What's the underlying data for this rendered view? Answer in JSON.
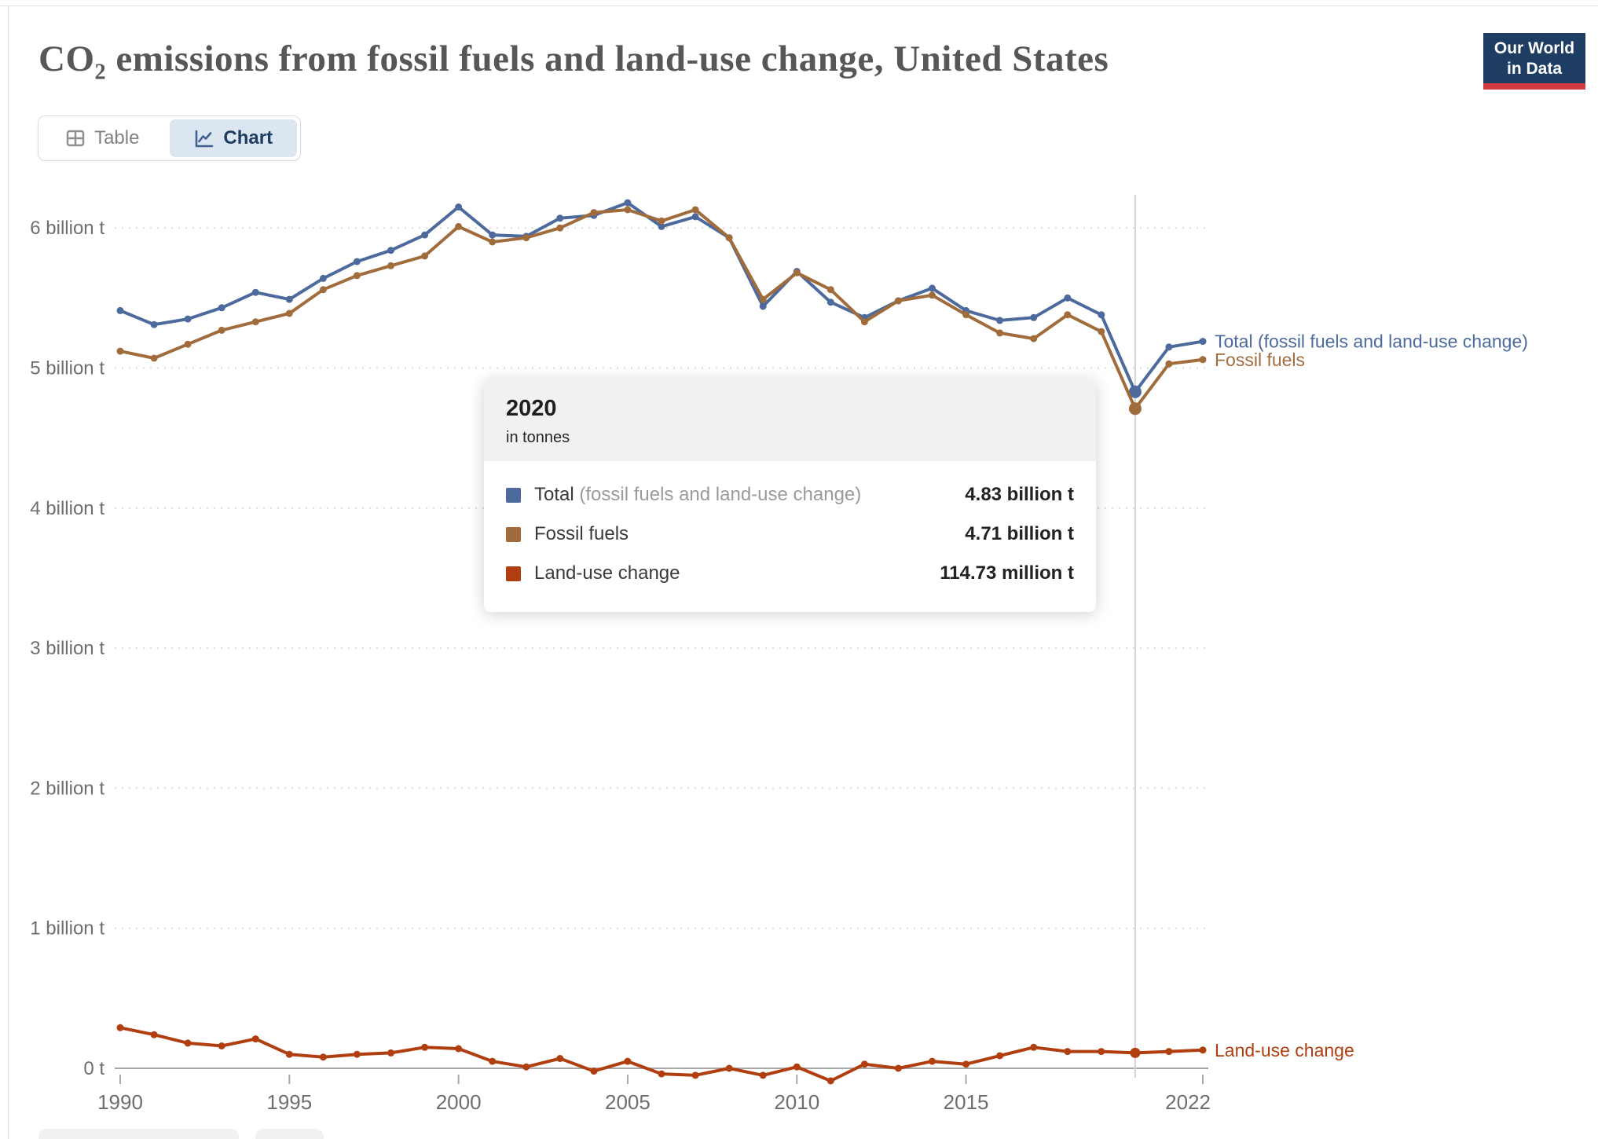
{
  "header": {
    "title_prefix": "CO",
    "title_sub": "2",
    "title_rest": " emissions from fossil fuels and land-use change, United States",
    "logo": {
      "line1": "Our World",
      "line2": "in Data",
      "bg_color": "#1d3d63",
      "bar_color": "#ce3a3f"
    }
  },
  "toolbar": {
    "table_label": "Table",
    "chart_label": "Chart",
    "active_tab": "Chart",
    "active_color": "#1d3d63"
  },
  "chart_data": {
    "type": "line",
    "title": "CO2 emissions from fossil fuels and land-use change, United States",
    "unit": "tonnes",
    "grid": true,
    "ylim": [
      0,
      6.5
    ],
    "x": [
      1990,
      1991,
      1992,
      1993,
      1994,
      1995,
      1996,
      1997,
      1998,
      1999,
      2000,
      2001,
      2002,
      2003,
      2004,
      2005,
      2006,
      2007,
      2008,
      2009,
      2010,
      2011,
      2012,
      2013,
      2014,
      2015,
      2016,
      2017,
      2018,
      2019,
      2020,
      2021,
      2022
    ],
    "x_ticks": [
      1990,
      1995,
      2000,
      2005,
      2010,
      2015,
      2022
    ],
    "y_ticks": [
      {
        "value": 0,
        "label": "0 t"
      },
      {
        "value": 1,
        "label": "1 billion t"
      },
      {
        "value": 2,
        "label": "2 billion t"
      },
      {
        "value": 3,
        "label": "3 billion t"
      },
      {
        "value": 4,
        "label": "4 billion t"
      },
      {
        "value": 5,
        "label": "5 billion t"
      },
      {
        "value": 6,
        "label": "6 billion t"
      }
    ],
    "highlight_year": 2020,
    "series": [
      {
        "name": "Total (fossil fuels and land-use change)",
        "color": "#4c6a9c",
        "values": [
          5.41,
          5.31,
          5.35,
          5.43,
          5.54,
          5.49,
          5.64,
          5.76,
          5.84,
          5.95,
          6.15,
          5.95,
          5.94,
          6.07,
          6.09,
          6.18,
          6.01,
          6.08,
          5.93,
          5.44,
          5.69,
          5.47,
          5.36,
          5.48,
          5.57,
          5.41,
          5.34,
          5.36,
          5.5,
          5.38,
          4.83,
          5.15,
          5.19
        ]
      },
      {
        "name": "Fossil fuels",
        "color": "#a16c3c",
        "values": [
          5.12,
          5.07,
          5.17,
          5.27,
          5.33,
          5.39,
          5.56,
          5.66,
          5.73,
          5.8,
          6.01,
          5.9,
          5.93,
          6.0,
          6.11,
          6.13,
          6.05,
          6.13,
          5.93,
          5.49,
          5.68,
          5.56,
          5.33,
          5.48,
          5.52,
          5.38,
          5.25,
          5.21,
          5.38,
          5.26,
          4.71,
          5.03,
          5.06
        ]
      },
      {
        "name": "Land-use change",
        "color": "#b13e0e",
        "values": [
          0.29,
          0.24,
          0.18,
          0.16,
          0.21,
          0.1,
          0.08,
          0.1,
          0.11,
          0.15,
          0.14,
          0.05,
          0.01,
          0.07,
          -0.02,
          0.05,
          -0.04,
          -0.05,
          0.0,
          -0.05,
          0.01,
          -0.09,
          0.03,
          0.0,
          0.05,
          0.03,
          0.09,
          0.15,
          0.12,
          0.12,
          0.11,
          0.12,
          0.13
        ]
      }
    ]
  },
  "tooltip": {
    "year": "2020",
    "subtitle": "in tonnes",
    "rows": [
      {
        "label": "Total",
        "label_note": "(fossil fuels and land-use change)",
        "value": "4.83 billion t",
        "color": "#4c6a9c"
      },
      {
        "label": "Fossil fuels",
        "label_note": "",
        "value": "4.71 billion t",
        "color": "#a16c3c"
      },
      {
        "label": "Land-use change",
        "label_note": "",
        "value": "114.73 million t",
        "color": "#b13e0e"
      }
    ]
  }
}
